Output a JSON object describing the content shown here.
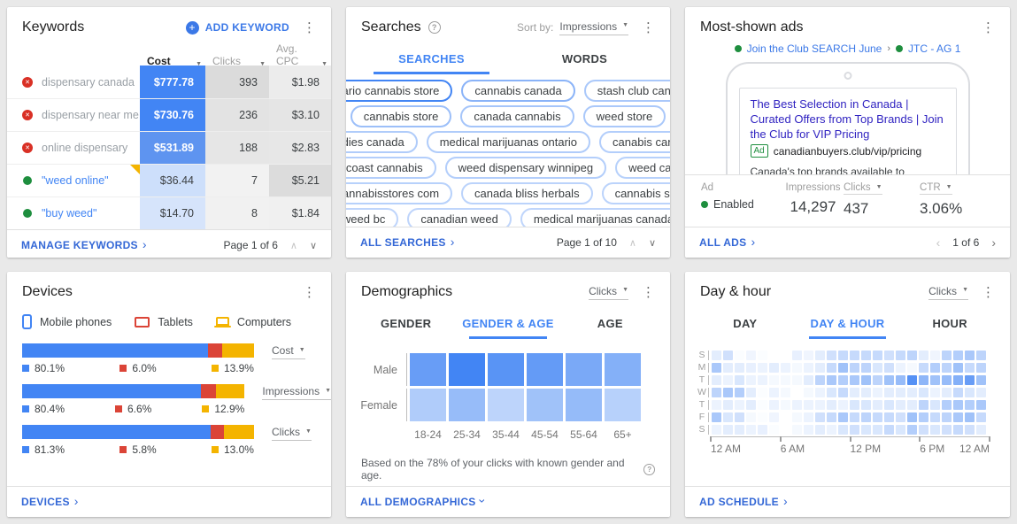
{
  "colors": {
    "blue": "#4285F4",
    "red": "#DB4437",
    "yellow": "#F4B400",
    "green": "#1E8E3E",
    "link": "#3367D6",
    "headline": "#3023C1"
  },
  "keywords": {
    "title": "Keywords",
    "add_label": "ADD KEYWORD",
    "columns": [
      {
        "label": "Cost",
        "active": true
      },
      {
        "label": "Clicks",
        "active": false
      },
      {
        "label": "Avg. CPC",
        "active": false
      }
    ],
    "rows": [
      {
        "status": "removed",
        "keyword": "dispensary canada",
        "cost": "$777.78",
        "clicks": "393",
        "cpc": "$1.98",
        "cost_bg": "#4285F4",
        "cost_fg": "#FFFFFF",
        "clicks_bg": "#DBDBDB",
        "cpc_bg": "#ECECEC",
        "link": false,
        "flag": false
      },
      {
        "status": "removed",
        "keyword": "dispensary near me",
        "cost": "$730.76",
        "clicks": "236",
        "cpc": "$3.10",
        "cost_bg": "#4285F4",
        "cost_fg": "#FFFFFF",
        "clicks_bg": "#E3E3E3",
        "cpc_bg": "#E5E5E5",
        "link": false,
        "flag": false
      },
      {
        "status": "removed",
        "keyword": "online dispensary",
        "cost": "$531.89",
        "clicks": "188",
        "cpc": "$2.83",
        "cost_bg": "#5E94F0",
        "cost_fg": "#FFFFFF",
        "clicks_bg": "#E6E6E6",
        "cpc_bg": "#E7E7E7",
        "link": false,
        "flag": false
      },
      {
        "status": "enabled",
        "keyword": "\"weed online\"",
        "cost": "$36.44",
        "clicks": "7",
        "cpc": "$5.21",
        "cost_bg": "#CDDFFB",
        "cost_fg": "#3C4043",
        "clicks_bg": "#F2F2F2",
        "cpc_bg": "#DCDCDC",
        "link": true,
        "flag": true
      },
      {
        "status": "enabled",
        "keyword": "\"buy weed\"",
        "cost": "$14.70",
        "clicks": "8",
        "cpc": "$1.84",
        "cost_bg": "#D6E4FB",
        "cost_fg": "#3C4043",
        "clicks_bg": "#F1F1F1",
        "cpc_bg": "#F0F0F0",
        "link": true,
        "flag": false
      }
    ],
    "footer_link": "MANAGE KEYWORDS",
    "pagination": "Page 1 of 6"
  },
  "searches": {
    "title": "Searches",
    "sort_by_label": "Sort by:",
    "sort_value": "Impressions",
    "tabs": [
      "SEARCHES",
      "WORDS"
    ],
    "active_tab": "SEARCHES",
    "pill_rows": [
      [
        {
          "label": "ontario cannabis store",
          "w": 1.0
        },
        {
          "label": "cannabis canada",
          "w": 0.62
        },
        {
          "label": "stash club canada",
          "w": 0.45
        }
      ],
      [
        {
          "label": "cannabis store",
          "w": 0.52
        },
        {
          "label": "canada cannabis",
          "w": 0.48
        },
        {
          "label": "weed store",
          "w": 0.45
        }
      ],
      [
        {
          "label": "buddies canada",
          "w": 0.42
        },
        {
          "label": "medical marijuanas ontario",
          "w": 0.42
        },
        {
          "label": "canabis canada",
          "w": 0.4
        }
      ],
      [
        {
          "label": "west coast cannabis",
          "w": 0.4
        },
        {
          "label": "weed dispensary winnipeg",
          "w": 0.4
        },
        {
          "label": "weed canada",
          "w": 0.38
        }
      ],
      [
        {
          "label": "nb cannabisstores com",
          "w": 0.38
        },
        {
          "label": "canada bliss herbals",
          "w": 0.36
        },
        {
          "label": "cannabis stores",
          "w": 0.36
        }
      ],
      [
        {
          "label": "weed bc",
          "w": 0.34
        },
        {
          "label": "canadian weed",
          "w": 0.34
        },
        {
          "label": "medical marijuanas canada",
          "w": 0.34
        }
      ],
      [
        {
          "label": "",
          "w": 0.32,
          "minw": 280
        },
        {
          "label": "",
          "w": 0.32,
          "minw": 150
        }
      ]
    ],
    "footer_link": "ALL SEARCHES",
    "pagination": "Page 1 of 10"
  },
  "ads": {
    "title": "Most-shown ads",
    "campaign": "Join the Club SEARCH June",
    "separator": "›",
    "ad_group": "JTC - AG 1",
    "headline": "The Best Selection in Canada | Curated Offers from Top Brands | Join the Club for VIP Pricing",
    "badge": "Ad",
    "display_url": "canadianbuyers.club/vip/pricing",
    "description": "Canada's top brands available to exclusive members at the best pricing. The latest varieties and largest selection. 275 products. 200 reviews.",
    "stats": {
      "col1_label": "Ad",
      "col2_label": "Impressions",
      "col3_label": "Clicks",
      "col4_label": "CTR",
      "status": "Enabled",
      "impressions": "14,297",
      "clicks": "437",
      "ctr": "3.06%"
    },
    "footer_link": "ALL ADS",
    "pagination": "1 of 6"
  },
  "devices": {
    "title": "Devices",
    "legend": [
      {
        "name": "Mobile phones",
        "color": "#4285F4"
      },
      {
        "name": "Tablets",
        "color": "#DB4437"
      },
      {
        "name": "Computers",
        "color": "#F4B400"
      }
    ],
    "chart_data": {
      "type": "bar",
      "series_labels": [
        "Mobile phones",
        "Tablets",
        "Computers"
      ],
      "metrics": [
        {
          "label": "Cost",
          "values": [
            80.1,
            6.0,
            13.9
          ],
          "display": [
            "80.1%",
            "6.0%",
            "13.9%"
          ]
        },
        {
          "label": "Impressions",
          "values": [
            80.4,
            6.6,
            12.9
          ],
          "display": [
            "80.4%",
            "6.6%",
            "12.9%"
          ]
        },
        {
          "label": "Clicks",
          "values": [
            81.3,
            5.8,
            13.0
          ],
          "display": [
            "81.3%",
            "5.8%",
            "13.0%"
          ]
        }
      ]
    },
    "footer_link": "DEVICES"
  },
  "demographics": {
    "title": "Demographics",
    "metric": "Clicks",
    "tabs": [
      "GENDER",
      "GENDER & AGE",
      "AGE"
    ],
    "active_tab": "GENDER & AGE",
    "chart_data": {
      "type": "heatmap",
      "rows": [
        "Male",
        "Female"
      ],
      "columns": [
        "18-24",
        "25-34",
        "35-44",
        "45-54",
        "55-64",
        "65+"
      ],
      "values": [
        [
          0.8,
          1.0,
          0.88,
          0.82,
          0.7,
          0.65
        ],
        [
          0.42,
          0.55,
          0.35,
          0.5,
          0.56,
          0.38
        ]
      ]
    },
    "note": "Based on the 78% of your clicks with known gender and age.",
    "footer_link": "ALL DEMOGRAPHICS"
  },
  "dayhour": {
    "title": "Day & hour",
    "metric": "Clicks",
    "tabs": [
      "DAY",
      "DAY & HOUR",
      "HOUR"
    ],
    "active_tab": "DAY & HOUR",
    "chart_data": {
      "type": "heatmap",
      "rows": [
        "S",
        "M",
        "T",
        "W",
        "T",
        "F",
        "S"
      ],
      "x_ticks": [
        "12 AM",
        "6 AM",
        "12 PM",
        "6 PM",
        "12 AM"
      ],
      "values": [
        [
          0.15,
          0.25,
          0.02,
          0.08,
          0.02,
          0,
          0,
          0.12,
          0.08,
          0.15,
          0.25,
          0.3,
          0.3,
          0.3,
          0.3,
          0.25,
          0.3,
          0.35,
          0.15,
          0.08,
          0.35,
          0.4,
          0.45,
          0.35
        ],
        [
          0.45,
          0.15,
          0.15,
          0.12,
          0.1,
          0.15,
          0.1,
          0.05,
          0.1,
          0.15,
          0.3,
          0.5,
          0.35,
          0.35,
          0.2,
          0.25,
          0.1,
          0.05,
          0.3,
          0.4,
          0.35,
          0.5,
          0.3,
          0.35
        ],
        [
          0.15,
          0.1,
          0.2,
          0.1,
          0.1,
          0.05,
          0.05,
          0.05,
          0.15,
          0.35,
          0.45,
          0.4,
          0.45,
          0.5,
          0.35,
          0.5,
          0.55,
          0.9,
          0.6,
          0.5,
          0.55,
          0.65,
          0.8,
          0.5
        ],
        [
          0.35,
          0.45,
          0.4,
          0.15,
          0.02,
          0.1,
          0.05,
          0,
          0.05,
          0.1,
          0.2,
          0.3,
          0.15,
          0.15,
          0.1,
          0.15,
          0.15,
          0.15,
          0.2,
          0.1,
          0.15,
          0.3,
          0.2,
          0.15
        ],
        [
          0.1,
          0.15,
          0.1,
          0.15,
          0.02,
          0.1,
          0.05,
          0.1,
          0.1,
          0.1,
          0.15,
          0.1,
          0.2,
          0.2,
          0.15,
          0.2,
          0.15,
          0.15,
          0.35,
          0.2,
          0.4,
          0.45,
          0.4,
          0.45
        ],
        [
          0.45,
          0.2,
          0.25,
          0.05,
          0.02,
          0.08,
          0,
          0.05,
          0.1,
          0.25,
          0.3,
          0.45,
          0.3,
          0.35,
          0.3,
          0.3,
          0.25,
          0.5,
          0.4,
          0.3,
          0.35,
          0.45,
          0.5,
          0.3
        ],
        [
          0.1,
          0.15,
          0.15,
          0.1,
          0.12,
          0.02,
          0,
          0.05,
          0.1,
          0.15,
          0.1,
          0.2,
          0.25,
          0.2,
          0.2,
          0.3,
          0.2,
          0.4,
          0.25,
          0.2,
          0.25,
          0.3,
          0.25,
          0.15
        ]
      ]
    },
    "footer_link": "AD SCHEDULE"
  }
}
